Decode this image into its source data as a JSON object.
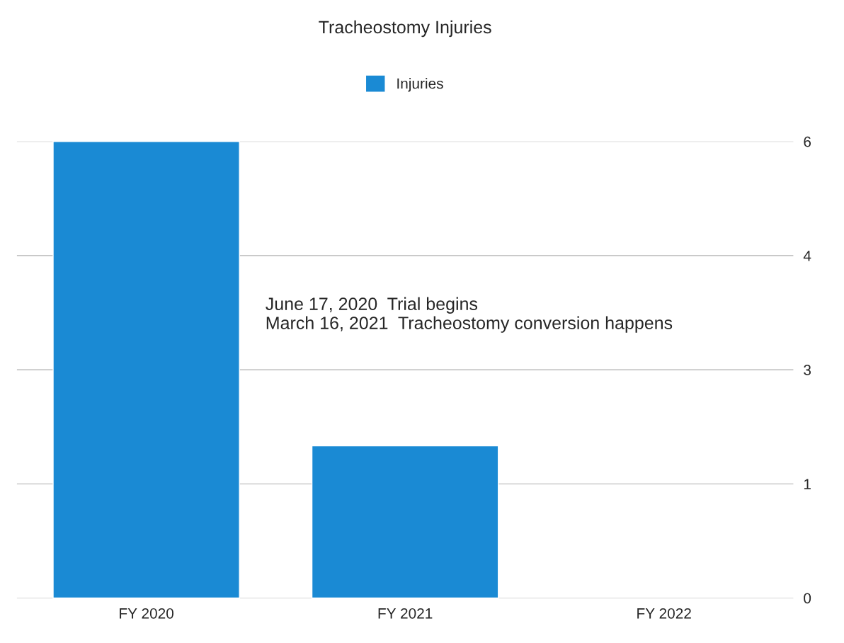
{
  "chart_data": {
    "type": "bar",
    "title": "Tracheostomy Injuries",
    "categories": [
      "FY 2020",
      "FY 2021",
      "FY 2022"
    ],
    "series": [
      {
        "name": "Injuries",
        "color": "#1a8ad4",
        "values": [
          6,
          2,
          null
        ]
      }
    ],
    "ylim": [
      0,
      6
    ],
    "yticks": [
      0,
      {
        "value": 1.5,
        "label": "1"
      },
      3,
      {
        "value": 4.5,
        "label": "4"
      },
      6
    ],
    "grid": "y",
    "legend": "top",
    "annotations": [
      "June 17, 2020  Trial begins\nMarch 16, 2021  Tracheostomy conversion happens"
    ]
  }
}
